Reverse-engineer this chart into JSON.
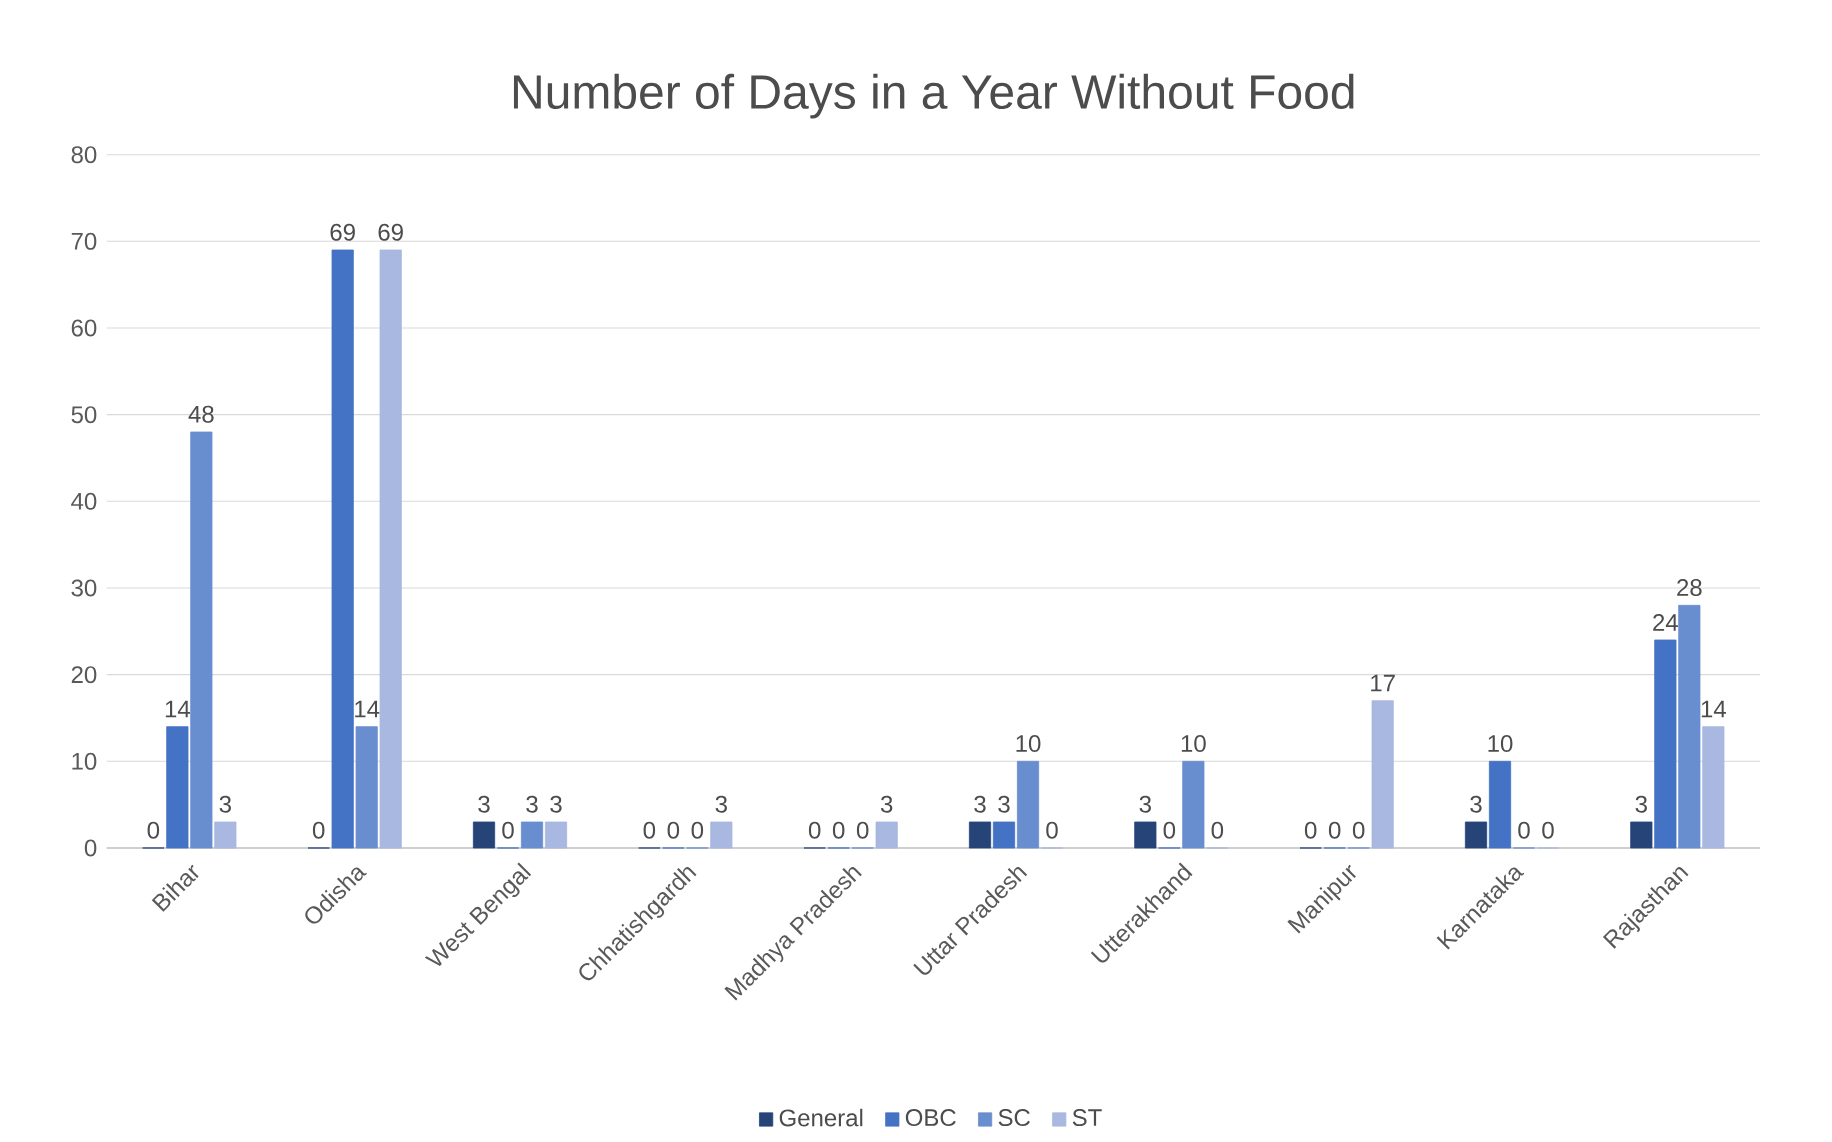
{
  "chart_data": {
    "type": "bar",
    "title": "Number of Days in a Year Without Food",
    "categories": [
      "Bihar",
      "Odisha",
      "West Bengal",
      "Chhatishgardh",
      "Madhya Pradesh",
      "Uttar Pradesh",
      "Utterakhand",
      "Manipur",
      "Karnataka",
      "Rajasthan"
    ],
    "series": [
      {
        "name": "General",
        "color": "#264478",
        "values": [
          0,
          0,
          3,
          0,
          0,
          3,
          3,
          0,
          3,
          3
        ]
      },
      {
        "name": "OBC",
        "color": "#4472c4",
        "values": [
          14,
          69,
          0,
          0,
          0,
          3,
          0,
          0,
          10,
          24
        ]
      },
      {
        "name": "SC",
        "color": "#698ed0",
        "values": [
          48,
          14,
          3,
          0,
          0,
          10,
          10,
          0,
          0,
          28
        ]
      },
      {
        "name": "ST",
        "color": "#a9b8e0",
        "values": [
          3,
          69,
          3,
          3,
          3,
          0,
          0,
          17,
          0,
          14
        ]
      }
    ],
    "ylim": [
      0,
      80
    ],
    "yticks": [
      0,
      10,
      20,
      30,
      40,
      50,
      60,
      70,
      80
    ],
    "grid": "y",
    "legend": "bottom",
    "data_labels": true
  }
}
